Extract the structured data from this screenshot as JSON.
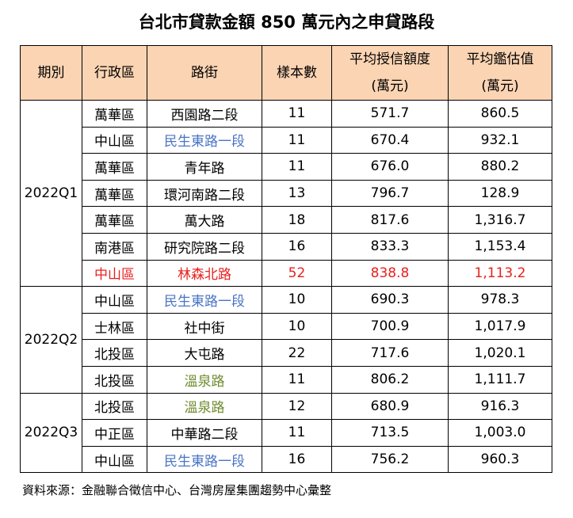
{
  "title": "台北市貸款金額 850 萬元內之申貸路段",
  "header": [
    {
      "label": "期別"
    },
    {
      "label": "行政區"
    },
    {
      "label": "路街"
    },
    {
      "label": "樣本數"
    },
    {
      "label": "平均授信額度",
      "unit": "(萬元)"
    },
    {
      "label": "平均鑑估值",
      "unit": "(萬元)"
    }
  ],
  "groups": [
    {
      "period": "2022Q1",
      "rows": [
        {
          "district": "萬華區",
          "street": "西園路二段",
          "samples": "11",
          "loan": "571.7",
          "appraisal": "860.5"
        },
        {
          "district": "中山區",
          "street": "民生東路一段",
          "street_color": "#4a74c4",
          "samples": "11",
          "loan": "670.4",
          "appraisal": "932.1"
        },
        {
          "district": "萬華區",
          "street": "青年路",
          "samples": "11",
          "loan": "676.0",
          "appraisal": "880.2"
        },
        {
          "district": "萬華區",
          "street": "環河南路二段",
          "samples": "13",
          "loan": "796.7",
          "appraisal": "128.9"
        },
        {
          "district": "萬華區",
          "street": "萬大路",
          "samples": "18",
          "loan": "817.6",
          "appraisal": "1,316.7"
        },
        {
          "district": "南港區",
          "street": "研究院路二段",
          "samples": "16",
          "loan": "833.3",
          "appraisal": "1,153.4"
        },
        {
          "district": "中山區",
          "street": "林森北路",
          "row_color": "#e8201e",
          "samples": "52",
          "loan": "838.8",
          "appraisal": "1,113.2"
        }
      ]
    },
    {
      "period": "2022Q2",
      "rows": [
        {
          "district": "中山區",
          "street": "民生東路一段",
          "street_color": "#4a74c4",
          "samples": "10",
          "loan": "690.3",
          "appraisal": "978.3"
        },
        {
          "district": "士林區",
          "street": "社中街",
          "samples": "10",
          "loan": "700.9",
          "appraisal": "1,017.9"
        },
        {
          "district": "北投區",
          "street": "大屯路",
          "samples": "22",
          "loan": "717.6",
          "appraisal": "1,020.1"
        },
        {
          "district": "北投區",
          "street": "溫泉路",
          "street_color": "#6f8b2e",
          "samples": "11",
          "loan": "806.2",
          "appraisal": "1,111.7"
        }
      ]
    },
    {
      "period": "2022Q3",
      "rows": [
        {
          "district": "北投區",
          "street": "溫泉路",
          "street_color": "#6f8b2e",
          "samples": "12",
          "loan": "680.9",
          "appraisal": "916.3"
        },
        {
          "district": "中正區",
          "street": "中華路二段",
          "samples": "11",
          "loan": "713.5",
          "appraisal": "1,003.0"
        },
        {
          "district": "中山區",
          "street": "民生東路一段",
          "street_color": "#4a74c4",
          "samples": "16",
          "loan": "756.2",
          "appraisal": "960.3"
        }
      ]
    }
  ],
  "source": "資料來源：金融聯合徵信中心、台灣房屋集團趨勢中心彙整"
}
